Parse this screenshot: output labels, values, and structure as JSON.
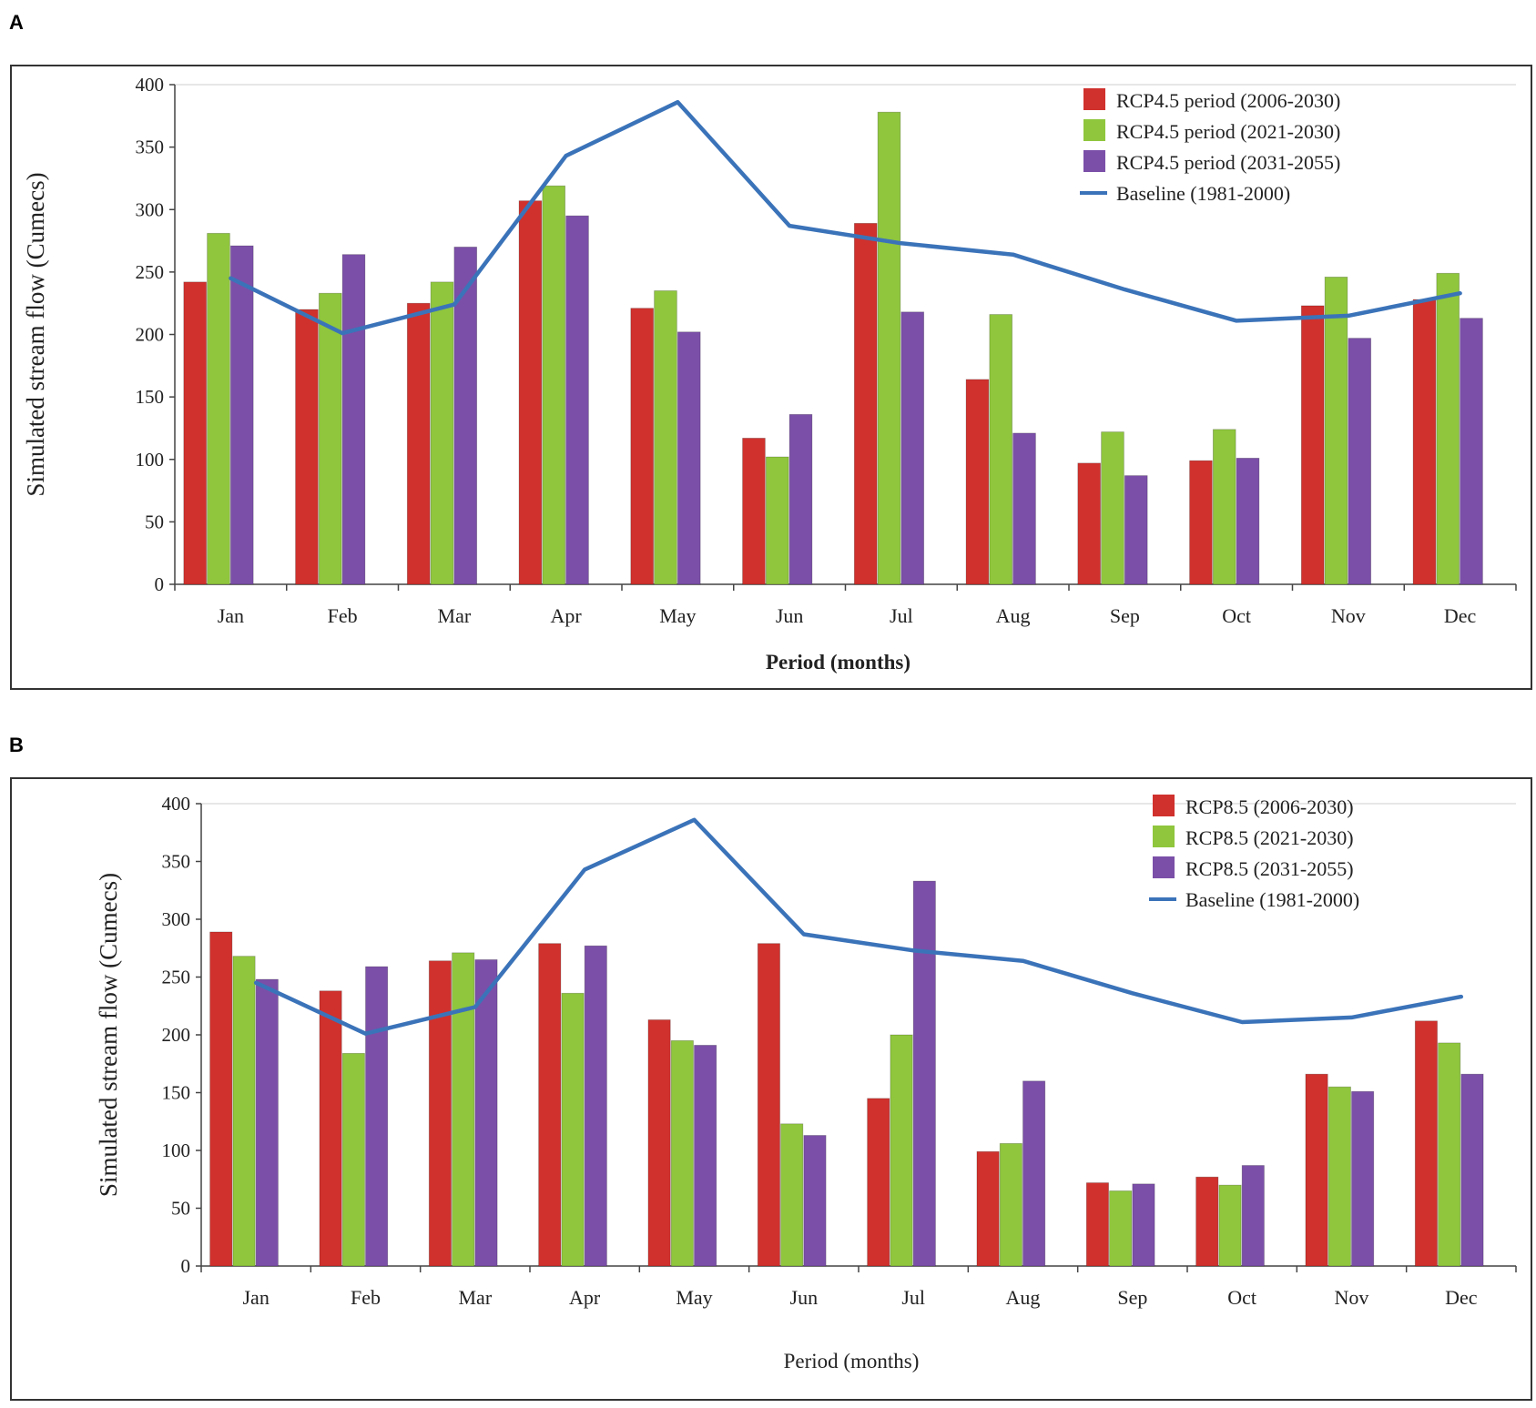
{
  "panels": {
    "a": "A",
    "b": "B"
  },
  "chart_data": [
    {
      "type": "bar",
      "panel": "A",
      "categories": [
        "Jan",
        "Feb",
        "Mar",
        "Apr",
        "May",
        "Jun",
        "Jul",
        "Aug",
        "Sep",
        "Oct",
        "Nov",
        "Dec"
      ],
      "series": [
        {
          "name": "RCP4.5 period (2006-2030)",
          "color": "#d0312d",
          "values": [
            242,
            220,
            225,
            307,
            221,
            117,
            289,
            164,
            97,
            99,
            223,
            228
          ]
        },
        {
          "name": "RCP4.5 period (2021-2030)",
          "color": "#8fc63d",
          "values": [
            281,
            233,
            242,
            319,
            235,
            102,
            378,
            216,
            122,
            124,
            246,
            249
          ]
        },
        {
          "name": "RCP4.5 period (2031-2055)",
          "color": "#7b4fa8",
          "values": [
            271,
            264,
            270,
            295,
            202,
            136,
            218,
            121,
            87,
            101,
            197,
            213
          ]
        }
      ],
      "line": {
        "name": "Baseline (1981-2000)",
        "color": "#3b73b9",
        "values": [
          245,
          201,
          224,
          343,
          386,
          287,
          273,
          264,
          236,
          211,
          215,
          233
        ]
      },
      "title": "",
      "xlabel": "Period (months)",
      "ylabel": "Simulated stream flow (Cumecs)",
      "ylim": [
        0,
        400
      ],
      "yticks": [
        "0",
        "50",
        "100",
        "150",
        "200",
        "250",
        "300",
        "350",
        "400"
      ],
      "legend": "top-right"
    },
    {
      "type": "bar",
      "panel": "B",
      "categories": [
        "Jan",
        "Feb",
        "Mar",
        "Apr",
        "May",
        "Jun",
        "Jul",
        "Aug",
        "Sep",
        "Oct",
        "Nov",
        "Dec"
      ],
      "series": [
        {
          "name": "RCP8.5 (2006-2030)",
          "color": "#d0312d",
          "values": [
            289,
            238,
            264,
            279,
            213,
            279,
            145,
            99,
            72,
            77,
            166,
            212
          ]
        },
        {
          "name": "RCP8.5 (2021-2030)",
          "color": "#8fc63d",
          "values": [
            268,
            184,
            271,
            236,
            195,
            123,
            200,
            106,
            65,
            70,
            155,
            193
          ]
        },
        {
          "name": "RCP8.5 (2031-2055)",
          "color": "#7b4fa8",
          "values": [
            248,
            259,
            265,
            277,
            191,
            113,
            333,
            160,
            71,
            87,
            151,
            166
          ]
        }
      ],
      "line": {
        "name": "Baseline (1981-2000)",
        "color": "#3b73b9",
        "values": [
          245,
          201,
          224,
          343,
          386,
          287,
          273,
          264,
          236,
          211,
          215,
          233
        ]
      },
      "title": "",
      "xlabel": "Period (months)",
      "ylabel": "Simulated stream flow (Cumecs)",
      "ylim": [
        0,
        400
      ],
      "yticks": [
        "0",
        "50",
        "100",
        "150",
        "200",
        "250",
        "300",
        "350",
        "400"
      ],
      "legend": "top-right"
    }
  ]
}
